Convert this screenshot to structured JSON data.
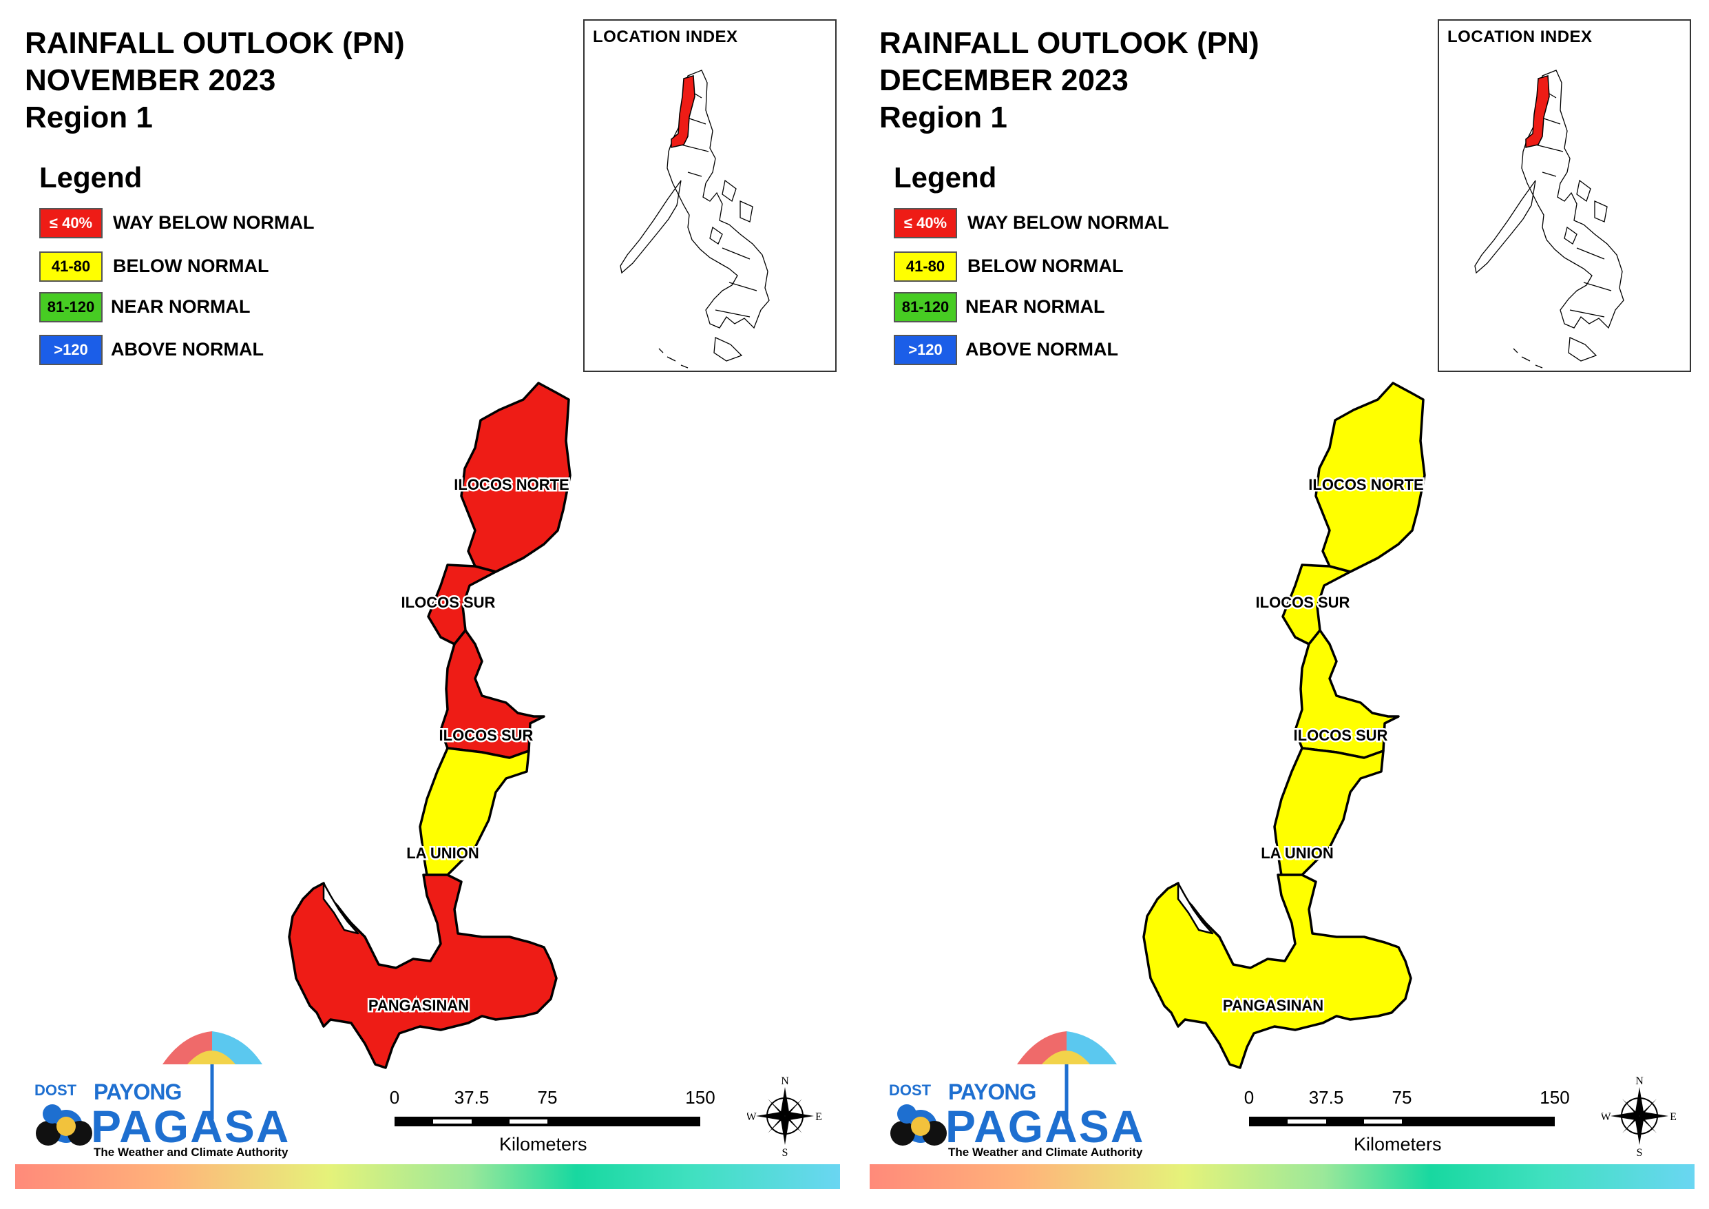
{
  "colors": {
    "way_below": "#ee1c16",
    "below": "#ffff00",
    "near": "#47cc23",
    "above": "#1b5ee8",
    "brand_blue": "#1e6fd0"
  },
  "legend": {
    "title": "Legend",
    "items": [
      {
        "code": "≤ 40%",
        "label": "WAY BELOW NORMAL",
        "color": "#ee1c16",
        "text_color": "#ffffff"
      },
      {
        "code": "41-80",
        "label": "BELOW NORMAL",
        "color": "#ffff00",
        "text_color": "#000000"
      },
      {
        "code": "81-120",
        "label": "NEAR NORMAL",
        "color": "#47cc23",
        "text_color": "#000000"
      },
      {
        "code": ">120",
        "label": "ABOVE NORMAL",
        "color": "#1b5ee8",
        "text_color": "#ffffff"
      }
    ]
  },
  "location_index_title": "LOCATION INDEX",
  "scale_bar": {
    "ticks": [
      "0",
      "37.5",
      "75",
      "150"
    ],
    "unit": "Kilometers"
  },
  "compass": {
    "n": "N",
    "s": "S",
    "e": "E",
    "w": "W"
  },
  "logo": {
    "dost": "DOST",
    "payong": "PAYONG",
    "pagasa": "PAGASA",
    "tagline": "The Weather and Climate Authority"
  },
  "panels": [
    {
      "title_line1": "RAINFALL OUTLOOK (PN)",
      "title_line2": "NOVEMBER 2023",
      "title_line3": "Region 1",
      "provinces": {
        "ilocos_norte": {
          "label": "ILOCOS NORTE",
          "category": "way_below"
        },
        "ilocos_sur_north": {
          "label": "ILOCOS SUR",
          "category": "way_below"
        },
        "ilocos_sur_south": {
          "label": "ILOCOS SUR",
          "category": "way_below"
        },
        "la_union": {
          "label": "LA UNION",
          "category": "below"
        },
        "pangasinan": {
          "label": "PANGASINAN",
          "category": "way_below"
        }
      }
    },
    {
      "title_line1": "RAINFALL OUTLOOK (PN)",
      "title_line2": "DECEMBER 2023",
      "title_line3": "Region 1",
      "provinces": {
        "ilocos_norte": {
          "label": "ILOCOS NORTE",
          "category": "below"
        },
        "ilocos_sur_north": {
          "label": "ILOCOS SUR",
          "category": "below"
        },
        "ilocos_sur_south": {
          "label": "ILOCOS SUR",
          "category": "below"
        },
        "la_union": {
          "label": "LA UNION",
          "category": "below"
        },
        "pangasinan": {
          "label": "PANGASINAN",
          "category": "below"
        }
      }
    }
  ]
}
